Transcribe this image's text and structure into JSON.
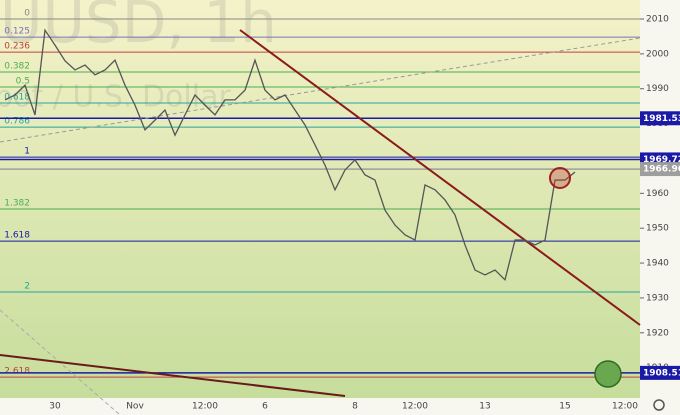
{
  "chart_data": {
    "type": "line",
    "watermark": "UUSD, 1h",
    "watermark_sub": "pot / U.S. Dollar",
    "categories": [
      null,
      null,
      null,
      null,
      null,
      "30",
      null,
      null,
      null,
      null,
      null,
      null,
      null,
      "Nov",
      null,
      null,
      null,
      null,
      null,
      null,
      "12:00",
      null,
      null,
      null,
      null,
      null,
      "6",
      null,
      null,
      null,
      null,
      null,
      null,
      null,
      null,
      "8",
      null,
      null,
      null,
      null,
      null,
      "12:00",
      null,
      null,
      null,
      null,
      null,
      null,
      "13",
      null,
      null,
      null,
      null,
      null,
      null,
      null,
      "15",
      null,
      null,
      null,
      null,
      null,
      "12:00",
      null
    ],
    "series": [
      {
        "color": "#555555",
        "values": [
          1986.8,
          1988.2,
          1991,
          1982.5,
          2006.8,
          2002.5,
          1998,
          1995.4,
          1996.8,
          1994,
          1995.4,
          1998.2,
          1991,
          1985.3,
          1978.2,
          1981,
          1983.9,
          1976.7,
          1982.5,
          1988.2,
          1985.3,
          1982.5,
          1986.8,
          1986.8,
          1989.6,
          1998.2,
          1989.6,
          1986.8,
          1988.2,
          1983.9,
          1979.6,
          1973.9,
          1968.1,
          1961,
          1966.7,
          1969.6,
          1965.3,
          1963.8,
          1955.2,
          1950.9,
          1948.1,
          1946.6,
          1962.4,
          1961,
          1958.1,
          1953.8,
          1945.2,
          1938,
          1936.6,
          1938,
          1935.2,
          1946.6,
          1946.6,
          1945.2,
          1946.6,
          1963.8,
          1963.8,
          1966.1,
          null,
          null,
          null,
          null,
          null,
          null
        ]
      }
    ],
    "ylim": [
      1901.3,
      2015.45
    ],
    "yticks": [
      1910,
      1920,
      1930,
      1940,
      1950,
      1960,
      1970,
      1980,
      1990,
      2000,
      2010
    ],
    "levels": [
      {
        "label": "0",
        "value": 2010,
        "color": "#888888"
      },
      {
        "label": "0.125",
        "value": 2004.8,
        "color": "#7b6fc0"
      },
      {
        "label": "0.236",
        "value": 2000.5,
        "color": "#c04040"
      },
      {
        "label": "0.382",
        "value": 1994.8,
        "color": "#4caf50"
      },
      {
        "label": "0.5",
        "value": 1990.5,
        "color": "#4caf50"
      },
      {
        "label": "0.618",
        "value": 1985.9,
        "color": "#26a69a"
      },
      {
        "label": "0.786",
        "value": 1979.0,
        "color": "#26a69a"
      },
      {
        "label": "1",
        "value": 1970.4,
        "color": "#1a1aa6"
      },
      {
        "label": "1.382",
        "value": 1955.5,
        "color": "#4caf50"
      },
      {
        "label": "1.618",
        "value": 1946.3,
        "color": "#1a1aa6"
      },
      {
        "label": "2",
        "value": 1931.7,
        "color": "#26a69a"
      },
      {
        "label": "2.618",
        "value": 1907.3,
        "color": "#c04040"
      }
    ],
    "price_tags": [
      {
        "value": 1981.53,
        "color": "#1a1aa6"
      },
      {
        "value": 1969.72,
        "color": "#1a1aa6"
      },
      {
        "value": 1966.96,
        "color": "#9e9e9e"
      },
      {
        "value": 1908.51,
        "color": "#1a1aa6"
      }
    ]
  }
}
